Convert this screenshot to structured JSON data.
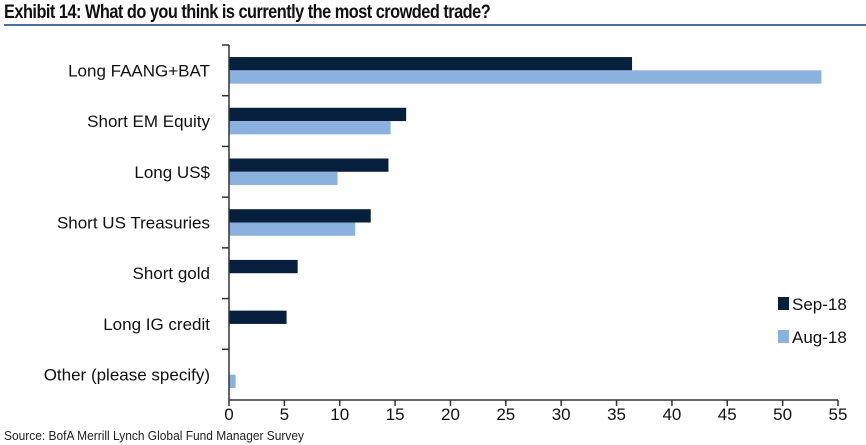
{
  "title": "Exhibit 14: What do you think is currently the most crowded trade?",
  "source": "Source:  BofA Merrill Lynch Global Fund Manager Survey",
  "chart_data": {
    "type": "bar",
    "orientation": "horizontal",
    "title": "Exhibit 14: What do you think is currently the most crowded trade?",
    "categories": [
      "Long FAANG+BAT",
      "Short EM Equity",
      "Long US$",
      "Short US Treasuries",
      "Short gold",
      "Long IG credit",
      "Other (please specify)"
    ],
    "series": [
      {
        "name": "Sep-18",
        "color": "#061f3d",
        "values": [
          36.4,
          16.0,
          14.4,
          12.8,
          6.2,
          5.2,
          0
        ]
      },
      {
        "name": "Aug-18",
        "color": "#8bb1de",
        "values": [
          53.5,
          14.6,
          9.8,
          11.4,
          0,
          0,
          0.6
        ]
      }
    ],
    "xlim": [
      0,
      55
    ],
    "xticks": [
      "0",
      "5",
      "10",
      "15",
      "20",
      "25",
      "30",
      "35",
      "40",
      "45",
      "50",
      "55"
    ],
    "xlabel": "",
    "ylabel": "",
    "grid": false,
    "legend": "bottom-right"
  }
}
